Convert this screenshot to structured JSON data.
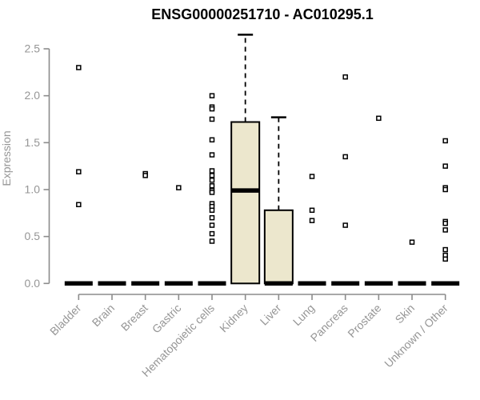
{
  "chart_data": {
    "type": "boxplot",
    "title": "ENSG00000251710 - AC010295.1",
    "ylabel": "Expression",
    "ylim": [
      0,
      2.5
    ],
    "yticks": [
      0.0,
      0.5,
      1.0,
      1.5,
      2.0,
      2.5
    ],
    "grid": false,
    "legend": "none",
    "categories": [
      "Bladder",
      "Brain",
      "Breast",
      "Gastric",
      "Hematopoietic cells",
      "Kidney",
      "Liver",
      "Lung",
      "Pancreas",
      "Prostate",
      "Skin",
      "Unknown / Other"
    ],
    "boxes": [
      {
        "category": "Bladder",
        "q1": 0,
        "median": 0,
        "q3": 0,
        "whisker_low": 0,
        "whisker_high": 0,
        "outliers": [
          2.3,
          1.19,
          0.84
        ]
      },
      {
        "category": "Brain",
        "q1": 0,
        "median": 0,
        "q3": 0,
        "whisker_low": 0,
        "whisker_high": 0,
        "outliers": []
      },
      {
        "category": "Breast",
        "q1": 0,
        "median": 0,
        "q3": 0,
        "whisker_low": 0,
        "whisker_high": 0,
        "outliers": [
          1.17,
          1.15
        ]
      },
      {
        "category": "Gastric",
        "q1": 0,
        "median": 0,
        "q3": 0,
        "whisker_low": 0,
        "whisker_high": 0,
        "outliers": [
          1.02
        ]
      },
      {
        "category": "Hematopoietic cells",
        "q1": 0,
        "median": 0,
        "q3": 0,
        "whisker_low": 0,
        "whisker_high": 0,
        "outliers": [
          2.0,
          1.88,
          1.86,
          1.75,
          1.53,
          1.37,
          1.2,
          1.15,
          1.1,
          1.04,
          0.99,
          0.97,
          0.85,
          0.82,
          0.78,
          0.7,
          0.62,
          0.53,
          0.45
        ]
      },
      {
        "category": "Kidney",
        "q1": 0,
        "median": 0.99,
        "q3": 1.72,
        "whisker_low": 0,
        "whisker_high": 2.65,
        "outliers": []
      },
      {
        "category": "Liver",
        "q1": 0,
        "median": 0,
        "q3": 0.78,
        "whisker_low": 0,
        "whisker_high": 1.77,
        "outliers": []
      },
      {
        "category": "Lung",
        "q1": 0,
        "median": 0,
        "q3": 0,
        "whisker_low": 0,
        "whisker_high": 0,
        "outliers": [
          1.14,
          0.78,
          0.67
        ]
      },
      {
        "category": "Pancreas",
        "q1": 0,
        "median": 0,
        "q3": 0,
        "whisker_low": 0,
        "whisker_high": 0,
        "outliers": [
          2.2,
          1.35,
          0.62
        ]
      },
      {
        "category": "Prostate",
        "q1": 0,
        "median": 0,
        "q3": 0,
        "whisker_low": 0,
        "whisker_high": 0,
        "outliers": [
          1.76
        ]
      },
      {
        "category": "Skin",
        "q1": 0,
        "median": 0,
        "q3": 0,
        "whisker_low": 0,
        "whisker_high": 0,
        "outliers": [
          0.44
        ]
      },
      {
        "category": "Unknown / Other",
        "q1": 0,
        "median": 0,
        "q3": 0,
        "whisker_low": 0,
        "whisker_high": 0,
        "outliers": [
          1.52,
          1.25,
          1.02,
          1.0,
          0.66,
          0.64,
          0.57,
          0.36,
          0.3,
          0.26
        ]
      }
    ],
    "style": {
      "box_fill": "#ECE7CD",
      "box_border": "#000000",
      "median_color": "#000000",
      "whisker_color": "#000000",
      "outlier_fill": "#ffffff",
      "outlier_border": "#000000",
      "axis_color": "#8C8C8C",
      "tick_label_color": "#969696",
      "title_color": "#000000",
      "background": "#ffffff"
    }
  }
}
